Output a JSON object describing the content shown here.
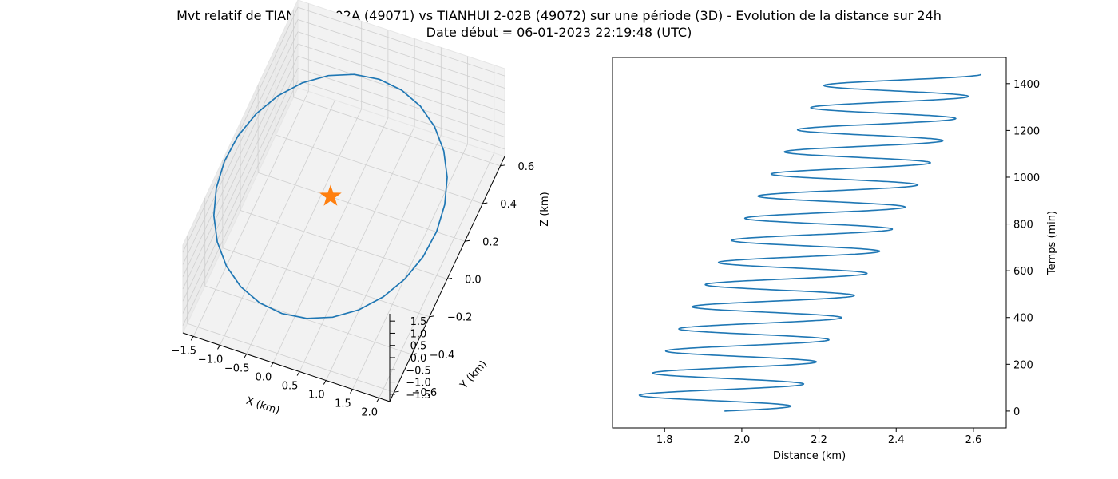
{
  "figure": {
    "title_line1": "Mvt relatif de TIANHUI 2-02A (49071) vs TIANHUI 2-02B (49072) sur une période (3D) - Evolution de la distance sur 24h",
    "title_line2": "Date début = 06-01-2023 22:19:48 (UTC)"
  },
  "chart_data": [
    {
      "type": "line",
      "projection": "3d",
      "xlabel": "X (km)",
      "ylabel": "Y (km)",
      "zlabel": "Z (km)",
      "x_ticks": [
        -1.5,
        -1.0,
        -0.5,
        0.0,
        0.5,
        1.0,
        1.5,
        2.0
      ],
      "y_ticks": [
        -0.6,
        -0.4,
        -0.2,
        0.0,
        0.2,
        0.4,
        0.6
      ],
      "z_ticks": [
        -1.5,
        -1.0,
        -0.5,
        0.0,
        0.5,
        1.0,
        1.5
      ],
      "xlim": [
        -1.7,
        2.2
      ],
      "ylim": [
        -0.65,
        0.65
      ],
      "zlim": [
        -1.8,
        1.8
      ],
      "series": [
        {
          "kind": "relative-orbit",
          "color": "#1f77b4",
          "center": [
            0.0,
            0.0,
            0.0
          ],
          "semi_axis_x": 2.0,
          "semi_axis_y": 0.55,
          "semi_axis_z": 0.55
        }
      ],
      "marker": {
        "symbol": "star",
        "color": "#ff7f0e",
        "x": 0.0,
        "y": 0.0,
        "z": 0.0
      }
    },
    {
      "type": "line",
      "xlabel": "Distance (km)",
      "ylabel": "Temps (min)",
      "x_ticks": [
        1.8,
        2.0,
        2.2,
        2.4,
        2.6
      ],
      "y_ticks": [
        0,
        200,
        400,
        600,
        800,
        1000,
        1200,
        1400
      ],
      "xlim": [
        1.665,
        2.685
      ],
      "ylim": [
        -72,
        1512
      ],
      "y_axis_side": "right",
      "series": [
        {
          "color": "#1f77b4",
          "t_range": [
            0,
            1440
          ],
          "period_min": 94.6,
          "center_start": 1.915,
          "center_end": 2.425,
          "amplitude_start": 0.205,
          "amplitude_end": 0.195,
          "start_value": 1.955
        }
      ]
    }
  ]
}
